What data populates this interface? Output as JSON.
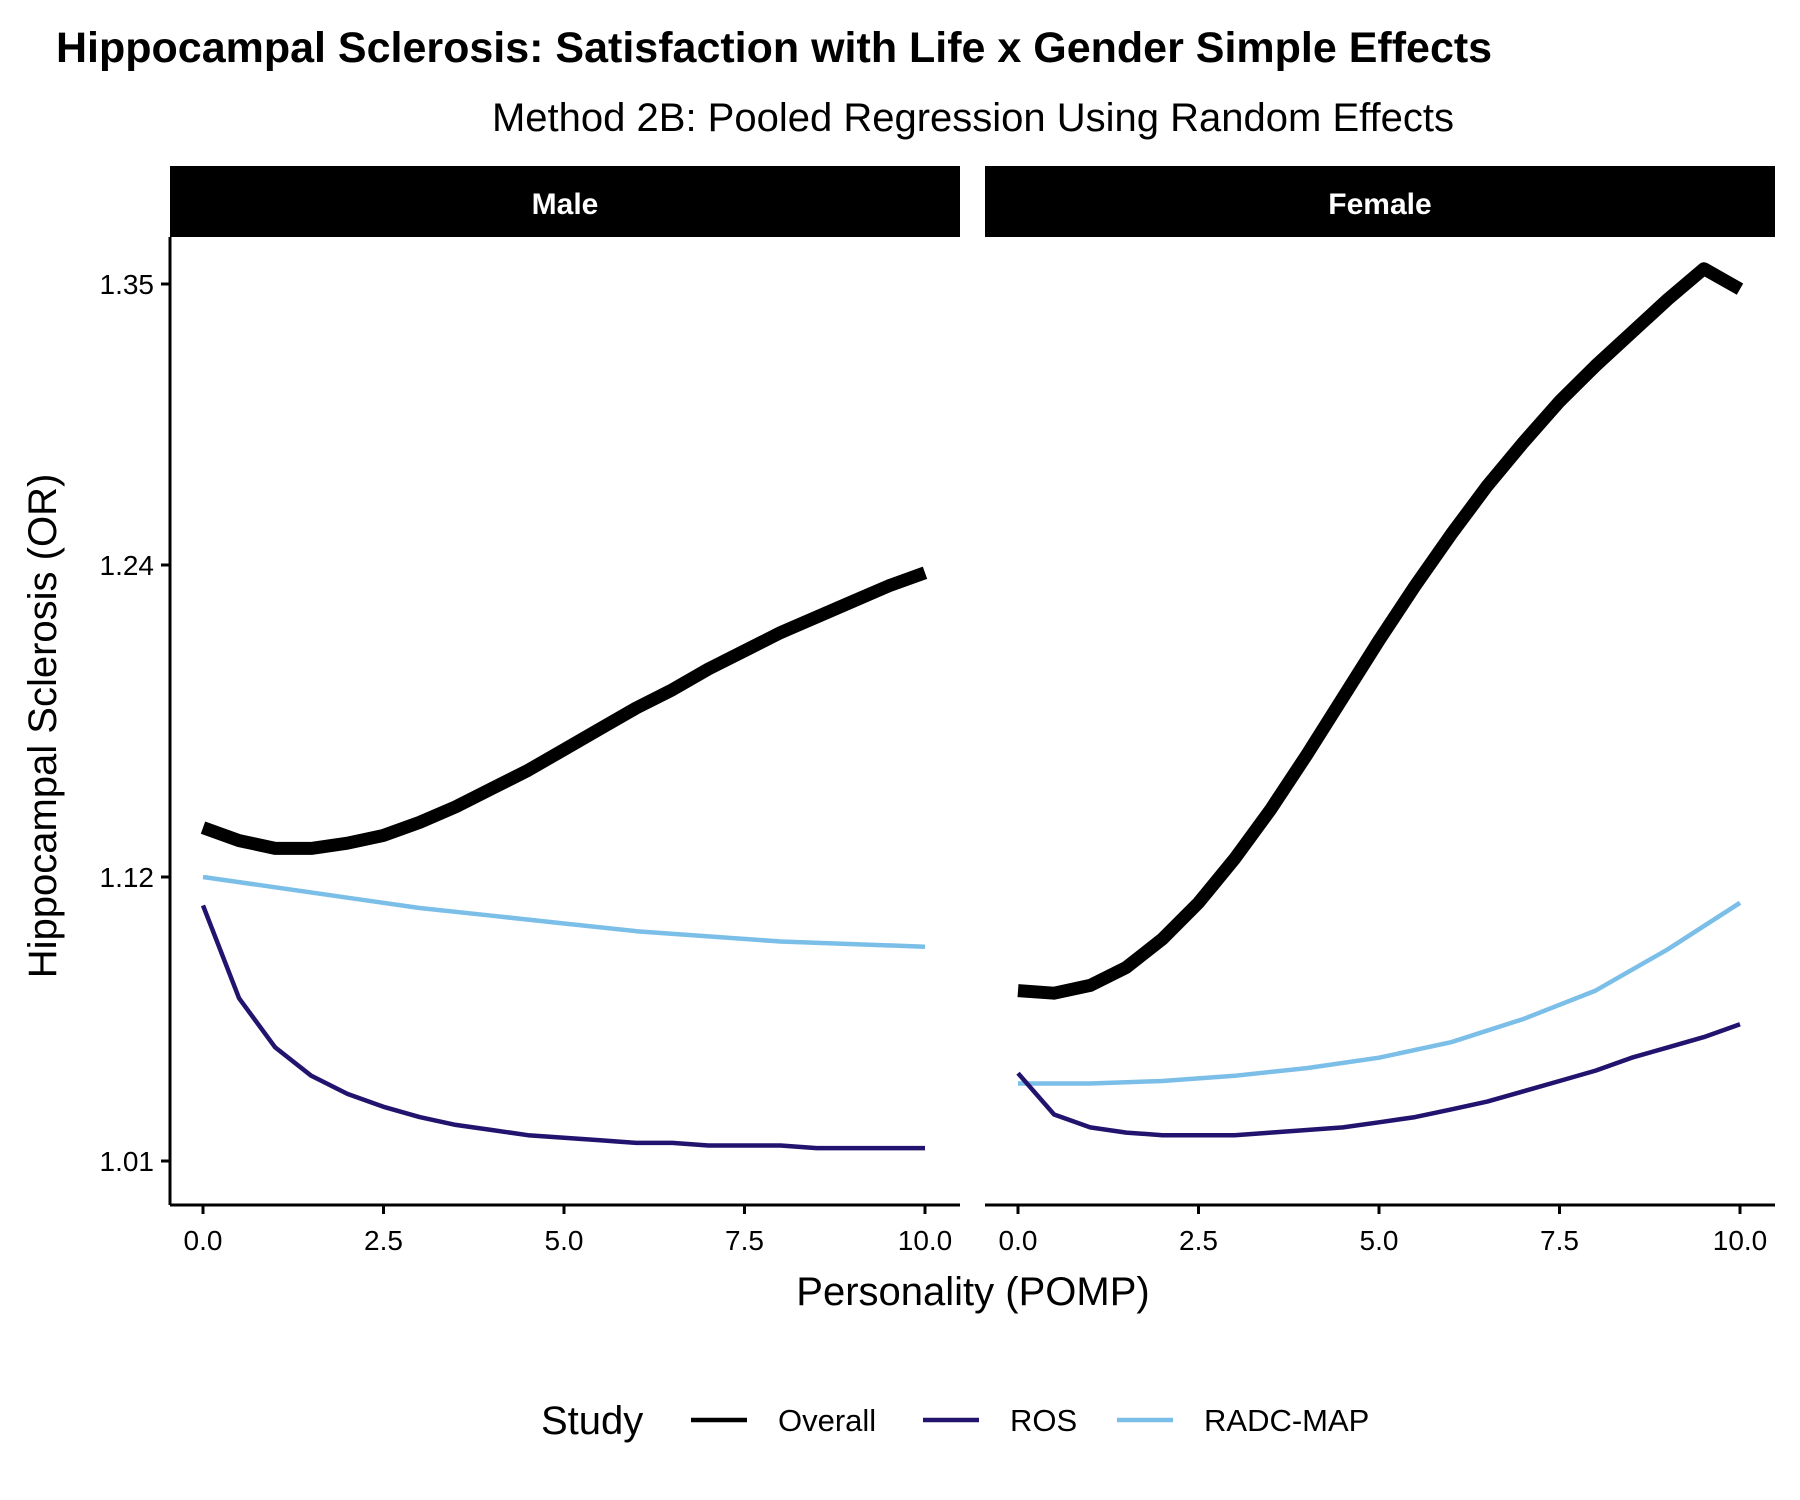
{
  "chart_data": {
    "type": "line",
    "title": "Hippocampal Sclerosis: Satisfaction with Life x Gender Simple Effects",
    "subtitle": "Method 2B: Pooled Regression Using Random Effects",
    "xlabel": "Personality (POMP)",
    "ylabel": "Hippocampal Sclerosis (OR)",
    "xlim": [
      -0.5,
      10.5
    ],
    "ylim": [
      0.993,
      1.368
    ],
    "x_ticks": [
      "0.0",
      "2.5",
      "5.0",
      "7.5",
      "10.0"
    ],
    "y_ticks": [
      "1.01",
      "1.12",
      "1.24",
      "1.35"
    ],
    "legend": {
      "title": "Study",
      "position": "bottom",
      "entries": [
        "Overall",
        "ROS",
        "RADC-MAP"
      ]
    },
    "colors": {
      "Overall": "#000000",
      "ROS": "#22146e",
      "RADC-MAP": "#7bbfe8"
    },
    "grid": false,
    "panels": [
      {
        "label": "Male",
        "series": [
          {
            "name": "Overall",
            "x": [
              0,
              0.5,
              1,
              1.5,
              2,
              2.5,
              3,
              3.5,
              4,
              4.5,
              5,
              5.5,
              6,
              6.5,
              7,
              7.5,
              8,
              8.5,
              9,
              9.5,
              10
            ],
            "y": [
              1.139,
              1.134,
              1.131,
              1.131,
              1.133,
              1.136,
              1.141,
              1.147,
              1.154,
              1.161,
              1.169,
              1.177,
              1.185,
              1.192,
              1.2,
              1.207,
              1.214,
              1.22,
              1.226,
              1.232,
              1.237
            ]
          },
          {
            "name": "ROS",
            "x": [
              0,
              0.5,
              1,
              1.5,
              2,
              2.5,
              3,
              3.5,
              4,
              4.5,
              5,
              5.5,
              6,
              6.5,
              7,
              7.5,
              8,
              8.5,
              9,
              9.5,
              10
            ],
            "y": [
              1.109,
              1.073,
              1.054,
              1.043,
              1.036,
              1.031,
              1.027,
              1.024,
              1.022,
              1.02,
              1.019,
              1.018,
              1.017,
              1.017,
              1.016,
              1.016,
              1.016,
              1.015,
              1.015,
              1.015,
              1.015
            ]
          },
          {
            "name": "RADC-MAP",
            "x": [
              0,
              1,
              2,
              3,
              4,
              5,
              6,
              7,
              8,
              9,
              10
            ],
            "y": [
              1.12,
              1.116,
              1.112,
              1.108,
              1.105,
              1.102,
              1.099,
              1.097,
              1.095,
              1.094,
              1.093
            ]
          }
        ]
      },
      {
        "label": "Female",
        "series": [
          {
            "name": "Overall",
            "x": [
              0,
              0.5,
              1,
              1.5,
              2,
              2.5,
              3,
              3.5,
              4,
              4.5,
              5,
              5.5,
              6,
              6.5,
              7,
              7.5,
              8,
              8.5,
              9,
              9.5,
              10
            ],
            "y": [
              1.076,
              1.075,
              1.078,
              1.085,
              1.096,
              1.11,
              1.127,
              1.146,
              1.167,
              1.189,
              1.211,
              1.232,
              1.252,
              1.271,
              1.288,
              1.304,
              1.318,
              1.331,
              1.344,
              1.356,
              1.348
            ]
          },
          {
            "name": "ROS",
            "x": [
              0,
              0.5,
              1,
              1.5,
              2,
              2.5,
              3,
              3.5,
              4,
              4.5,
              5,
              5.5,
              6,
              6.5,
              7,
              7.5,
              8,
              8.5,
              9,
              9.5,
              10
            ],
            "y": [
              1.044,
              1.028,
              1.023,
              1.021,
              1.02,
              1.02,
              1.02,
              1.021,
              1.022,
              1.023,
              1.025,
              1.027,
              1.03,
              1.033,
              1.037,
              1.041,
              1.045,
              1.05,
              1.054,
              1.058,
              1.063
            ]
          },
          {
            "name": "RADC-MAP",
            "x": [
              0,
              1,
              2,
              3,
              4,
              5,
              6,
              7,
              8,
              9,
              10
            ],
            "y": [
              1.04,
              1.04,
              1.041,
              1.043,
              1.046,
              1.05,
              1.056,
              1.065,
              1.076,
              1.092,
              1.11
            ]
          }
        ]
      }
    ]
  }
}
